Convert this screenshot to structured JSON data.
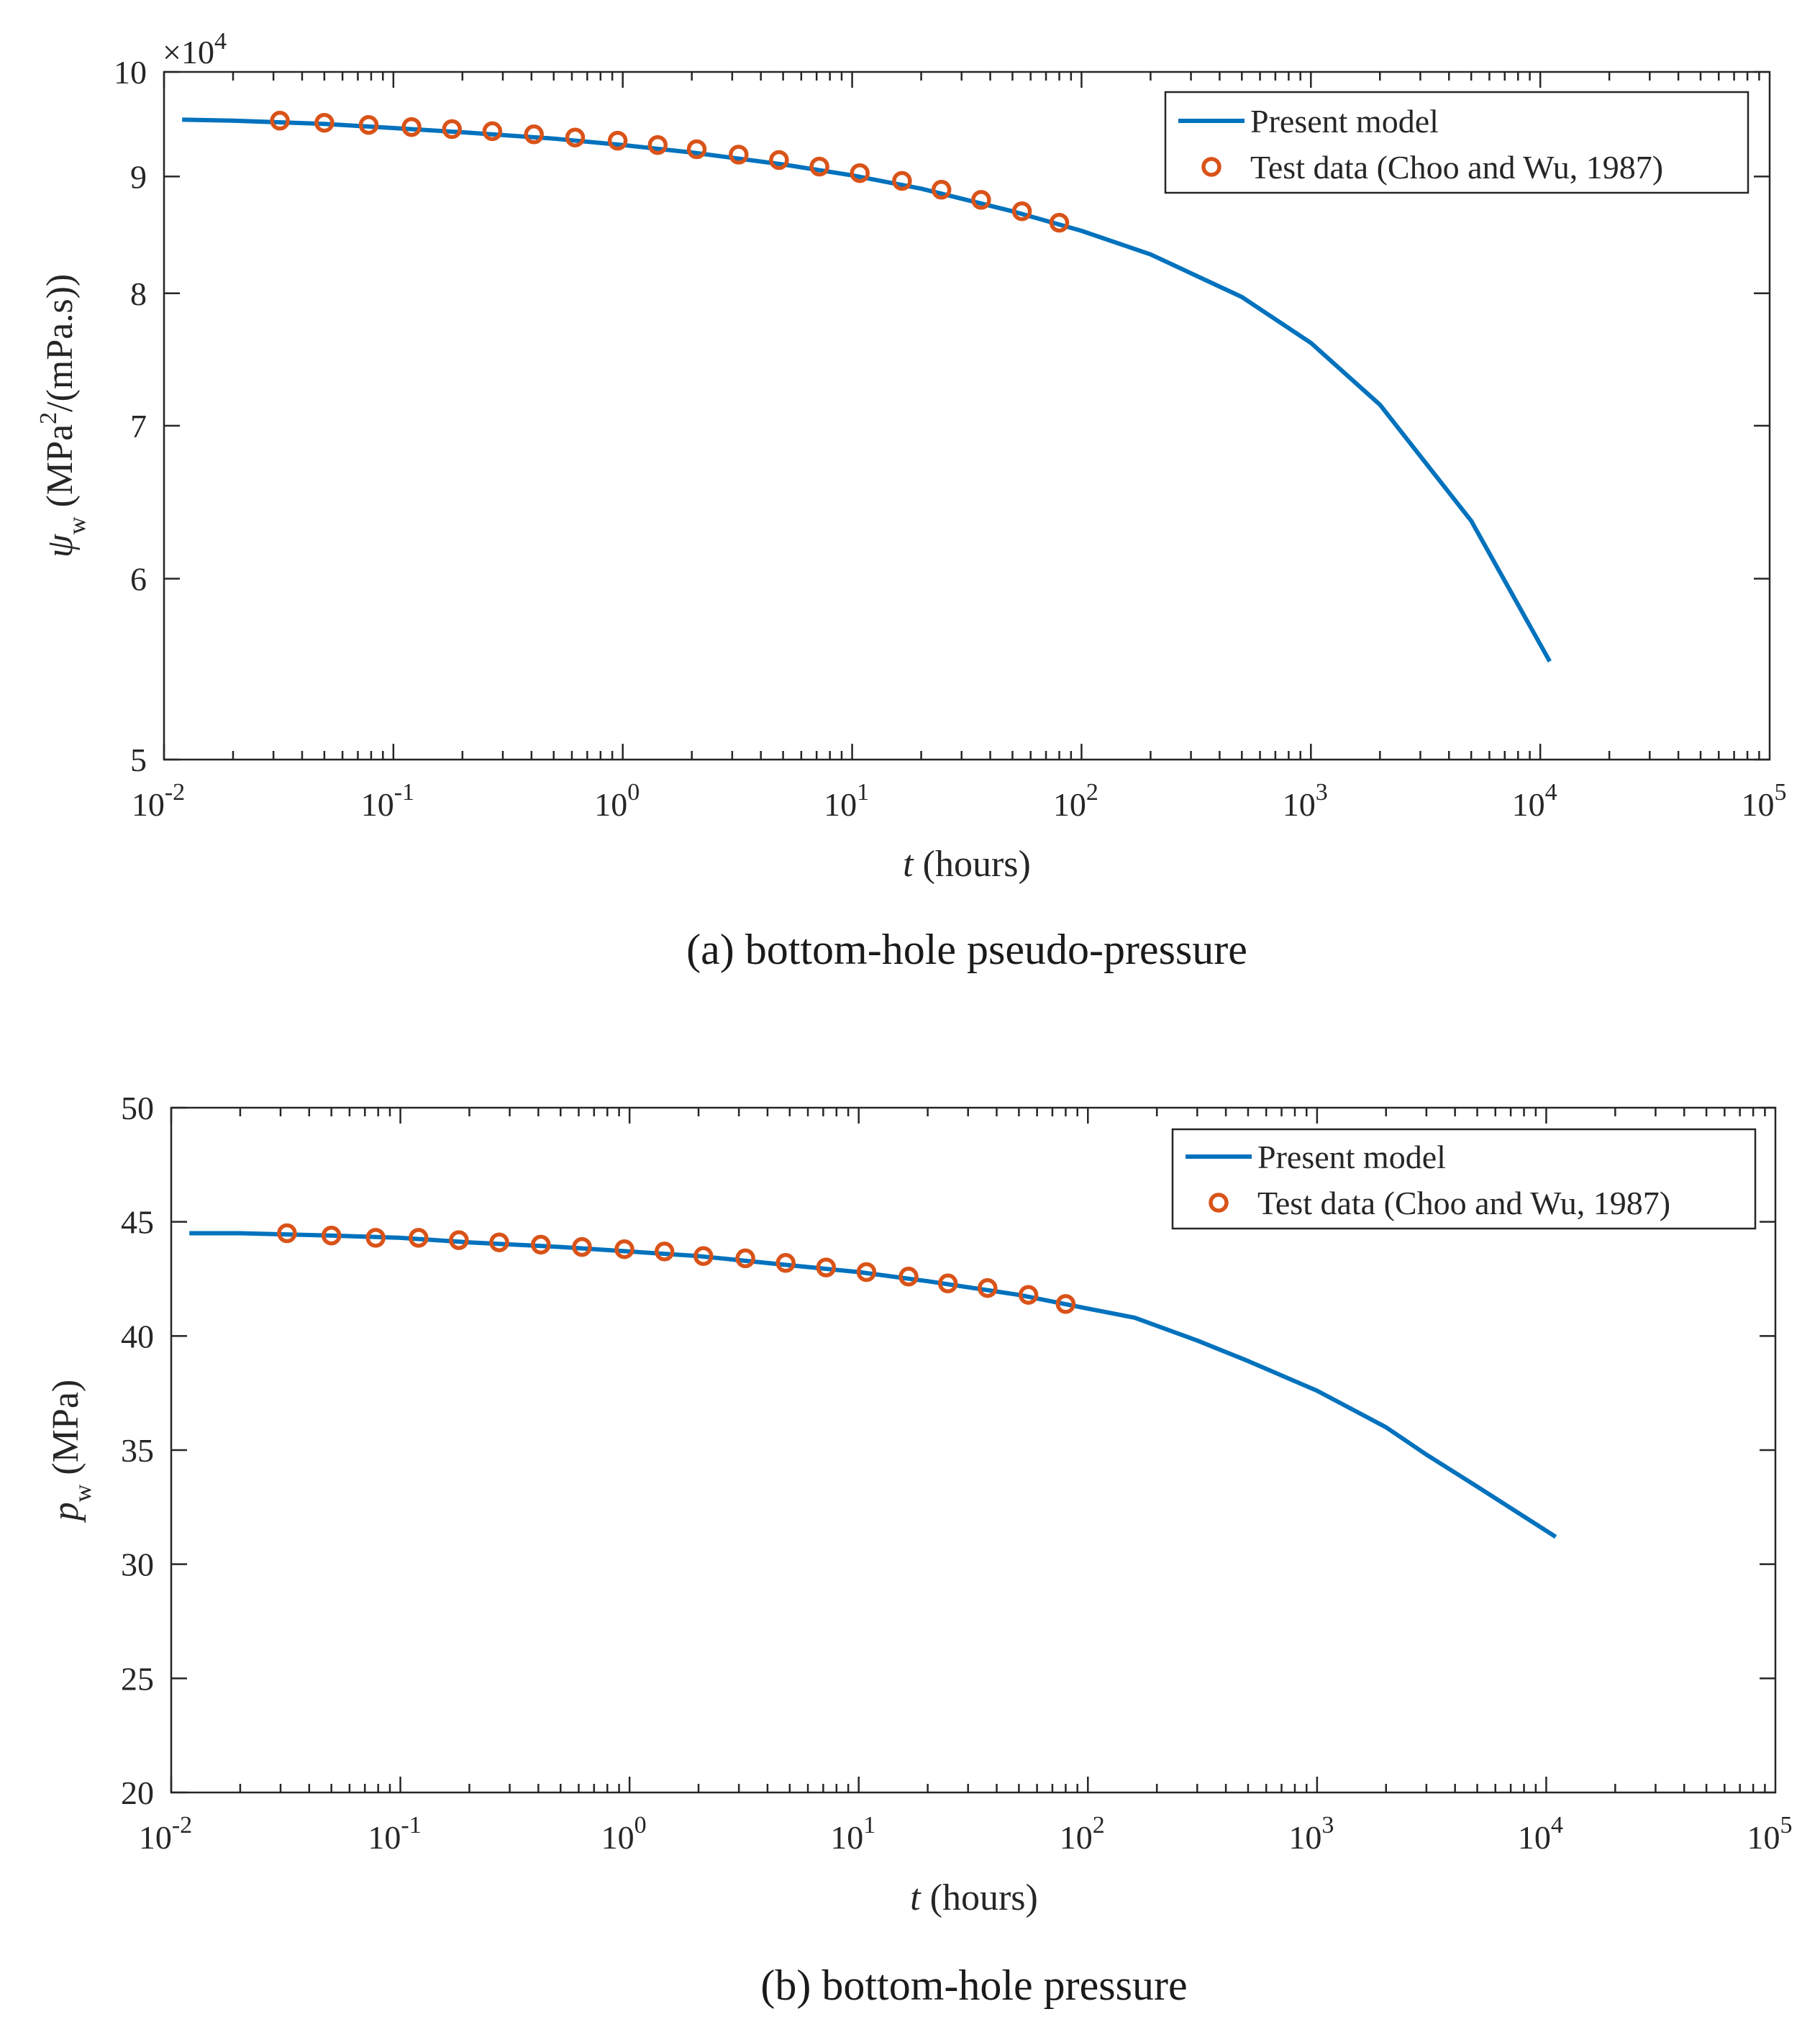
{
  "chart_data": [
    {
      "type": "line",
      "caption": "(a) bottom-hole pseudo-pressure",
      "xlabel": {
        "italic": "t",
        "rest": " (hours)"
      },
      "ylabel": {
        "symbol": "ψ",
        "subscript": "w",
        "rest": " (MPa",
        "sup": "2",
        "rest2": "/(mPa.s))"
      },
      "xscale": "log",
      "yscale": "log",
      "xlim": [
        0.01,
        100000
      ],
      "ylim": [
        50000,
        100000
      ],
      "y_multiplier": {
        "base": "×10",
        "exp": "4"
      },
      "xticks": [
        {
          "value": 0.01,
          "base": "10",
          "exp": "-2"
        },
        {
          "value": 0.1,
          "base": "10",
          "exp": "-1"
        },
        {
          "value": 1,
          "base": "10",
          "exp": "0"
        },
        {
          "value": 10,
          "base": "10",
          "exp": "1"
        },
        {
          "value": 100,
          "base": "10",
          "exp": "2"
        },
        {
          "value": 1000,
          "base": "10",
          "exp": "3"
        },
        {
          "value": 10000,
          "base": "10",
          "exp": "4"
        },
        {
          "value": 100000,
          "base": "10",
          "exp": "5"
        }
      ],
      "yticks": [
        {
          "value": 50000,
          "label": "5"
        },
        {
          "value": 60000,
          "label": "6"
        },
        {
          "value": 70000,
          "label": "7"
        },
        {
          "value": 80000,
          "label": "8"
        },
        {
          "value": 90000,
          "label": "9"
        },
        {
          "value": 100000,
          "label": "10"
        }
      ],
      "legend_position": "top-right",
      "series": [
        {
          "name": "Present model",
          "kind": "line",
          "color": "#0072BD",
          "x": [
            0.012,
            0.02,
            0.05,
            0.1,
            0.2,
            0.5,
            1,
            2,
            5,
            10,
            20,
            50,
            100,
            200,
            500,
            1000,
            2000,
            5000,
            11000
          ],
          "y": [
            95300,
            95200,
            94900,
            94500,
            94100,
            93500,
            92900,
            92200,
            91100,
            90100,
            88900,
            86900,
            85200,
            83200,
            79700,
            76100,
            71500,
            63600,
            55200
          ]
        },
        {
          "name": "Test data (Choo and Wu, 1987)",
          "kind": "scatter",
          "color": "#D95319",
          "x": [
            0.032,
            0.05,
            0.078,
            0.12,
            0.18,
            0.27,
            0.41,
            0.62,
            0.95,
            1.42,
            2.1,
            3.2,
            4.8,
            7.2,
            10.8,
            16.5,
            24.5,
            36.5,
            55,
            80
          ],
          "y": [
            95200,
            95000,
            94800,
            94600,
            94400,
            94200,
            93900,
            93600,
            93300,
            92900,
            92500,
            92000,
            91500,
            90900,
            90300,
            89600,
            88800,
            87900,
            86900,
            85900
          ]
        }
      ]
    },
    {
      "type": "line",
      "caption": "(b) bottom-hole pressure",
      "xlabel": {
        "italic": "t",
        "rest": " (hours)"
      },
      "ylabel": {
        "symbol": "p",
        "subscript": "w",
        "rest": " (MPa)"
      },
      "xscale": "log",
      "yscale": "linear",
      "xlim": [
        0.01,
        100000
      ],
      "ylim": [
        20,
        50
      ],
      "xticks": [
        {
          "value": 0.01,
          "base": "10",
          "exp": "-2"
        },
        {
          "value": 0.1,
          "base": "10",
          "exp": "-1"
        },
        {
          "value": 1,
          "base": "10",
          "exp": "0"
        },
        {
          "value": 10,
          "base": "10",
          "exp": "1"
        },
        {
          "value": 100,
          "base": "10",
          "exp": "2"
        },
        {
          "value": 1000,
          "base": "10",
          "exp": "3"
        },
        {
          "value": 10000,
          "base": "10",
          "exp": "4"
        },
        {
          "value": 100000,
          "base": "10",
          "exp": "5"
        }
      ],
      "yticks": [
        {
          "value": 20,
          "label": "20"
        },
        {
          "value": 25,
          "label": "25"
        },
        {
          "value": 30,
          "label": "30"
        },
        {
          "value": 35,
          "label": "35"
        },
        {
          "value": 40,
          "label": "40"
        },
        {
          "value": 45,
          "label": "45"
        },
        {
          "value": 50,
          "label": "50"
        }
      ],
      "legend_position": "top-right",
      "series": [
        {
          "name": "Present model",
          "kind": "line",
          "color": "#0072BD",
          "x": [
            0.012,
            0.02,
            0.05,
            0.1,
            0.2,
            0.5,
            1,
            2,
            5,
            10,
            20,
            50,
            100,
            160,
            300,
            500,
            1000,
            2000,
            3000,
            5000,
            11000
          ],
          "y": [
            44.5,
            44.5,
            44.4,
            44.3,
            44.1,
            43.9,
            43.7,
            43.5,
            43.1,
            42.8,
            42.4,
            41.8,
            41.2,
            40.8,
            39.8,
            38.9,
            37.6,
            36.0,
            34.8,
            33.4,
            31.2
          ]
        },
        {
          "name": "Test data (Choo and Wu, 1987)",
          "kind": "scatter",
          "color": "#D95319",
          "x": [
            0.032,
            0.05,
            0.078,
            0.12,
            0.18,
            0.27,
            0.41,
            0.62,
            0.95,
            1.42,
            2.1,
            3.2,
            4.8,
            7.2,
            10.8,
            16.5,
            24.5,
            36.5,
            55,
            80
          ],
          "y": [
            44.5,
            44.4,
            44.3,
            44.3,
            44.2,
            44.1,
            44.0,
            43.9,
            43.8,
            43.7,
            43.5,
            43.4,
            43.2,
            43.0,
            42.8,
            42.6,
            42.3,
            42.1,
            41.8,
            41.4
          ]
        }
      ]
    }
  ]
}
